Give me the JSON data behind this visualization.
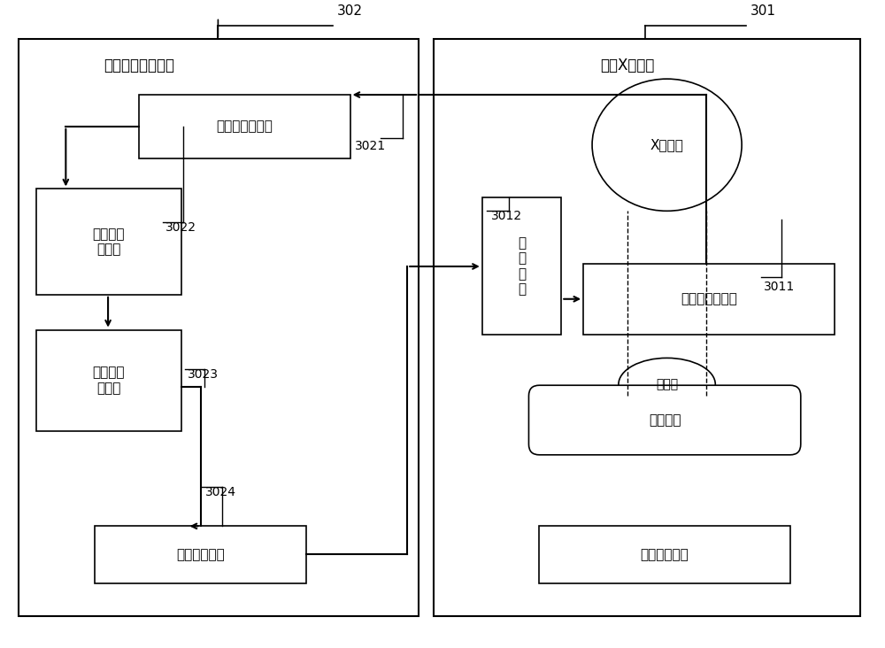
{
  "bg_color": "#ffffff",
  "border_color": "#000000",
  "box_color": "#ffffff",
  "text_color": "#000000",
  "left_box_title": "压迫运动保护装置",
  "right_box_title": "乳腺X射线机",
  "label_302": "302",
  "label_301": "301",
  "label_3021": "3021",
  "label_3022": "3022",
  "label_3023": "3023",
  "label_3024": "3024",
  "label_3011": "3011",
  "label_3012": "3012",
  "node_pressure_collect": "压迫力采集模块",
  "node_protect_select": "保护值选\n定模块",
  "node_micro_proc": "第一微处\n理模块",
  "node_output_ctrl": "输出控制模块",
  "node_drive_mech": "驱\n动\n机\n构",
  "node_xray_tube": "X射线管",
  "node_pressure_apply": "压迫力施加装置",
  "node_subject": "受检体",
  "node_support": "支撑装置",
  "node_image_collect": "图像采集装置"
}
